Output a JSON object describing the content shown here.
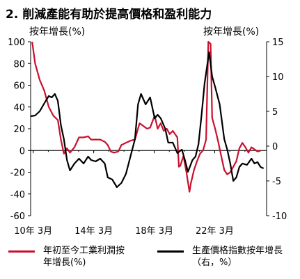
{
  "chart_data": {
    "type": "line",
    "title": "2. 削減產能有助於提高價格和盈利能力",
    "left_axis": {
      "label": "按年增長(%)",
      "ylim": [
        -60,
        100
      ],
      "ticks": [
        -60,
        -40,
        -20,
        0,
        20,
        40,
        60,
        80,
        100
      ]
    },
    "right_axis": {
      "label": "按年增長(%)",
      "ylim": [
        -10,
        15
      ],
      "ticks": [
        -10,
        -5,
        0,
        5,
        10,
        15
      ]
    },
    "x_tick_labels": [
      "10年 3月",
      "14年 3月",
      "18年 3月",
      "22年 3月"
    ],
    "x_ticks": [
      2010.17,
      2014.17,
      2018.17,
      2022.17
    ],
    "xlim": [
      2010.0,
      2025.6
    ],
    "grid": false,
    "legend_position": "bottom",
    "series": [
      {
        "name": "年初至今工業利潤按年增長(%)",
        "axis": "left",
        "color": "#c8102e",
        "points": [
          [
            2010.1,
            100
          ],
          [
            2010.3,
            80
          ],
          [
            2010.6,
            65
          ],
          [
            2010.9,
            55
          ],
          [
            2011.2,
            40
          ],
          [
            2011.5,
            32
          ],
          [
            2011.8,
            28
          ],
          [
            2012.0,
            10
          ],
          [
            2012.2,
            -3
          ],
          [
            2012.4,
            2
          ],
          [
            2012.6,
            -2
          ],
          [
            2012.9,
            3
          ],
          [
            2013.2,
            12
          ],
          [
            2013.5,
            12
          ],
          [
            2013.8,
            13
          ],
          [
            2014.0,
            10
          ],
          [
            2014.3,
            10
          ],
          [
            2014.6,
            10
          ],
          [
            2014.9,
            8
          ],
          [
            2015.1,
            5
          ],
          [
            2015.3,
            -1
          ],
          [
            2015.5,
            -2
          ],
          [
            2015.8,
            -1
          ],
          [
            2016.0,
            5
          ],
          [
            2016.3,
            7
          ],
          [
            2016.6,
            9
          ],
          [
            2016.9,
            10
          ],
          [
            2017.2,
            25
          ],
          [
            2017.5,
            22
          ],
          [
            2017.7,
            20
          ],
          [
            2017.9,
            21
          ],
          [
            2018.2,
            32
          ],
          [
            2018.4,
            20
          ],
          [
            2018.6,
            25
          ],
          [
            2018.8,
            18
          ],
          [
            2019.0,
            20
          ],
          [
            2019.2,
            15
          ],
          [
            2019.4,
            18
          ],
          [
            2019.7,
            12
          ],
          [
            2019.8,
            -15
          ],
          [
            2019.9,
            -14
          ],
          [
            2020.1,
            -5
          ],
          [
            2020.3,
            -20
          ],
          [
            2020.5,
            -38
          ],
          [
            2020.6,
            -30
          ],
          [
            2020.8,
            -18
          ],
          [
            2021.0,
            -10
          ],
          [
            2021.2,
            -3
          ],
          [
            2021.4,
            0
          ],
          [
            2021.6,
            10
          ],
          [
            2021.75,
            100
          ],
          [
            2021.9,
            98
          ],
          [
            2022.0,
            30
          ],
          [
            2022.2,
            20
          ],
          [
            2022.4,
            8
          ],
          [
            2022.6,
            -5
          ],
          [
            2022.8,
            -18
          ],
          [
            2023.0,
            -22
          ],
          [
            2023.2,
            -20
          ],
          [
            2023.4,
            -15
          ],
          [
            2023.6,
            -10
          ],
          [
            2023.8,
            2
          ],
          [
            2024.0,
            7
          ],
          [
            2024.2,
            3
          ],
          [
            2024.4,
            -2
          ],
          [
            2024.6,
            3
          ],
          [
            2024.8,
            1
          ],
          [
            2025.0,
            -1
          ],
          [
            2025.2,
            0
          ]
        ]
      },
      {
        "name": "生產價格指數按年增長（右，%）",
        "axis": "right",
        "color": "#000000",
        "points": [
          [
            2010.0,
            4.3
          ],
          [
            2010.3,
            4.4
          ],
          [
            2010.6,
            5.0
          ],
          [
            2011.0,
            6.5
          ],
          [
            2011.2,
            7.2
          ],
          [
            2011.4,
            7.0
          ],
          [
            2011.6,
            7.5
          ],
          [
            2011.8,
            6.5
          ],
          [
            2012.0,
            3.0
          ],
          [
            2012.2,
            1.0
          ],
          [
            2012.4,
            -2.0
          ],
          [
            2012.6,
            -3.5
          ],
          [
            2012.9,
            -2.5
          ],
          [
            2013.2,
            -1.8
          ],
          [
            2013.5,
            -2.5
          ],
          [
            2013.8,
            -1.5
          ],
          [
            2014.0,
            -2.0
          ],
          [
            2014.3,
            -2.2
          ],
          [
            2014.6,
            -1.8
          ],
          [
            2014.9,
            -2.5
          ],
          [
            2015.1,
            -4.5
          ],
          [
            2015.4,
            -4.8
          ],
          [
            2015.7,
            -5.9
          ],
          [
            2016.0,
            -5.3
          ],
          [
            2016.3,
            -4.0
          ],
          [
            2016.6,
            -1.5
          ],
          [
            2016.9,
            1.0
          ],
          [
            2017.1,
            6.0
          ],
          [
            2017.3,
            7.5
          ],
          [
            2017.6,
            6.0
          ],
          [
            2017.9,
            7.0
          ],
          [
            2018.2,
            4.0
          ],
          [
            2018.4,
            4.5
          ],
          [
            2018.6,
            4.0
          ],
          [
            2018.9,
            2.5
          ],
          [
            2019.1,
            0.5
          ],
          [
            2019.4,
            0.5
          ],
          [
            2019.7,
            -1.0
          ],
          [
            2020.0,
            -0.5
          ],
          [
            2020.2,
            -2.0
          ],
          [
            2020.4,
            -3.7
          ],
          [
            2020.7,
            -2.0
          ],
          [
            2020.9,
            -1.5
          ],
          [
            2021.1,
            0.3
          ],
          [
            2021.3,
            4.5
          ],
          [
            2021.5,
            9.0
          ],
          [
            2021.8,
            13.5
          ],
          [
            2022.0,
            10.0
          ],
          [
            2022.2,
            8.5
          ],
          [
            2022.5,
            6.0
          ],
          [
            2022.8,
            1.0
          ],
          [
            2023.0,
            -0.5
          ],
          [
            2023.2,
            -2.5
          ],
          [
            2023.4,
            -5.0
          ],
          [
            2023.6,
            -4.5
          ],
          [
            2023.8,
            -3.0
          ],
          [
            2024.0,
            -2.5
          ],
          [
            2024.3,
            -2.7
          ],
          [
            2024.6,
            -1.8
          ],
          [
            2024.8,
            -2.5
          ],
          [
            2025.0,
            -2.3
          ],
          [
            2025.2,
            -3.0
          ],
          [
            2025.4,
            -3.2
          ]
        ]
      }
    ]
  }
}
